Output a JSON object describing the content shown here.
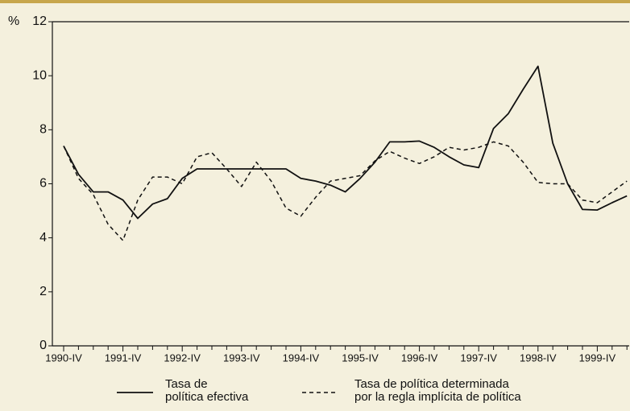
{
  "chart_data": {
    "type": "line",
    "ylabel": "%",
    "categories": [
      "1990-IV",
      null,
      null,
      null,
      "1991-IV",
      null,
      null,
      null,
      "1992-IV",
      null,
      null,
      null,
      "1993-IV",
      null,
      null,
      null,
      "1994-IV",
      null,
      null,
      null,
      "1995-IV",
      null,
      null,
      null,
      "1996-IV",
      null,
      null,
      null,
      "1997-IV",
      null,
      null,
      null,
      "1998-IV",
      null,
      null,
      null,
      "1999-IV",
      null,
      null
    ],
    "series": [
      {
        "name": "Tasa de\npolítica efectiva",
        "color": "#111111",
        "dash": "solid",
        "values": [
          7.4,
          6.35,
          5.7,
          5.7,
          5.4,
          4.72,
          5.25,
          5.45,
          6.2,
          6.55,
          6.55,
          6.55,
          6.55,
          6.55,
          6.55,
          6.55,
          6.2,
          6.1,
          5.95,
          5.7,
          6.2,
          6.8,
          7.55,
          7.55,
          7.58,
          7.35,
          7.0,
          6.7,
          6.6,
          8.05,
          8.6,
          9.5,
          10.35,
          7.5,
          6.0,
          5.05,
          5.03,
          5.3,
          5.55
        ]
      },
      {
        "name": "Tasa de política determinada\npor la regla implícita de política",
        "color": "#111111",
        "dash": "dashed",
        "values": [
          7.4,
          6.2,
          5.6,
          4.5,
          3.9,
          5.4,
          6.25,
          6.25,
          6.0,
          7.0,
          7.15,
          6.55,
          5.9,
          6.8,
          6.1,
          5.1,
          4.8,
          5.5,
          6.1,
          6.2,
          6.3,
          6.85,
          7.2,
          6.95,
          6.75,
          7.0,
          7.35,
          7.25,
          7.35,
          7.55,
          7.4,
          6.8,
          6.05,
          6.0,
          6.0,
          5.4,
          5.3,
          5.7,
          6.1
        ]
      }
    ],
    "ylim": [
      0,
      12
    ],
    "yticks": [
      0,
      2,
      4,
      6,
      8,
      10,
      12
    ],
    "grid": false
  }
}
